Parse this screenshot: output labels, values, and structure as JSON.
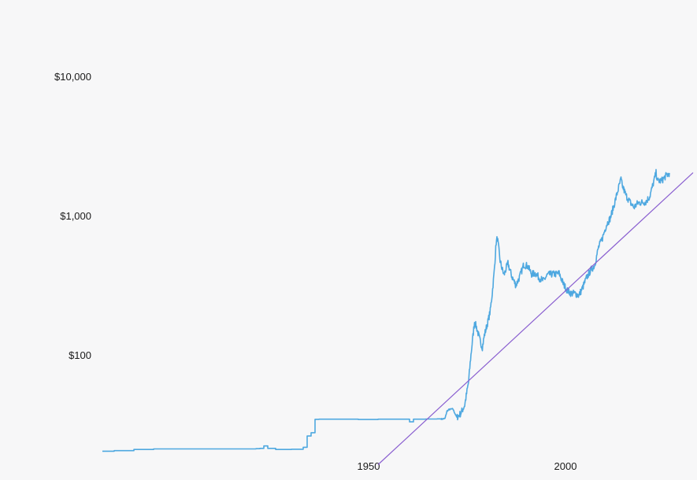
{
  "chart_data": {
    "type": "line",
    "title": "",
    "xlabel": "",
    "ylabel": "",
    "y_scale": "log",
    "xlim": [
      1880,
      2030
    ],
    "ylim": [
      15,
      18000
    ],
    "grid": false,
    "legend": "none",
    "x_ticks": [
      {
        "value": 1950,
        "label": "1950"
      },
      {
        "value": 2000,
        "label": "2000"
      }
    ],
    "y_ticks": [
      {
        "value": 100,
        "label": "$100"
      },
      {
        "value": 1000,
        "label": "$1,000"
      },
      {
        "value": 10000,
        "label": "$10,000"
      }
    ],
    "series": [
      {
        "color": "#4ea8e0",
        "style": "step-noisy",
        "points": [
          [
            1880,
            20.6
          ],
          [
            1883,
            20.8
          ],
          [
            1888,
            21.2
          ],
          [
            1893,
            21.4
          ],
          [
            1900,
            21.4
          ],
          [
            1905,
            21.4
          ],
          [
            1910,
            21.4
          ],
          [
            1915,
            21.4
          ],
          [
            1919,
            21.5
          ],
          [
            1920,
            21.6
          ],
          [
            1921,
            22.5
          ],
          [
            1922,
            21.6
          ],
          [
            1924,
            21.2
          ],
          [
            1928,
            21.3
          ],
          [
            1930,
            21.3
          ],
          [
            1931,
            22.0
          ],
          [
            1932,
            26.5
          ],
          [
            1933,
            28.0
          ],
          [
            1934,
            34.9
          ],
          [
            1935,
            35.0
          ],
          [
            1940,
            35.0
          ],
          [
            1945,
            34.8
          ],
          [
            1950,
            35.0
          ],
          [
            1952,
            35.0
          ],
          [
            1955,
            35.0
          ],
          [
            1957,
            35.0
          ],
          [
            1958,
            33.5
          ],
          [
            1959,
            35.0
          ],
          [
            1960,
            35.0
          ],
          [
            1962,
            35.1
          ],
          [
            1965,
            35.2
          ],
          [
            1968,
            35.3
          ],
          [
            1970,
            35.5
          ],
          [
            1972,
            35.6
          ],
          [
            1975,
            35.6
          ],
          [
            1977,
            35.6
          ],
          [
            1980,
            35.6
          ],
          [
            1983,
            36.0
          ],
          [
            1985,
            36.2
          ],
          [
            1988,
            36.5
          ],
          [
            1990,
            36.5
          ],
          [
            1992,
            36.2
          ],
          [
            1994,
            36.0
          ],
          [
            1996,
            36.1
          ],
          [
            1998,
            36.3
          ],
          [
            2000,
            36.4
          ],
          [
            2003,
            36.6
          ],
          [
            2005,
            36.8
          ],
          [
            2008,
            37.0
          ],
          [
            2010,
            37.0
          ],
          [
            2013,
            37.2
          ],
          [
            2015,
            37.4
          ],
          [
            2018,
            37.5
          ],
          [
            2020,
            37.6
          ],
          [
            2022,
            37.6
          ]
        ]
      },
      {
        "color": "#4ea8e0",
        "style": "gold-price",
        "points": [
          [
            1966,
            35.0
          ],
          [
            1967,
            35.3
          ],
          [
            1967.5,
            40.0
          ],
          [
            1968,
            41.0
          ],
          [
            1969,
            41.5
          ],
          [
            1970,
            36.0
          ],
          [
            1971,
            38.5
          ],
          [
            1972,
            44.0
          ],
          [
            1973,
            65.0
          ],
          [
            1973.5,
            95.0
          ],
          [
            1974,
            130.0
          ],
          [
            1974.5,
            175.0
          ],
          [
            1975,
            160.0
          ],
          [
            1976,
            125.0
          ],
          [
            1976.5,
            115.0
          ],
          [
            1977,
            140.0
          ],
          [
            1978,
            180.0
          ],
          [
            1978.5,
            210.0
          ],
          [
            1979,
            280.0
          ],
          [
            1979.5,
            400.0
          ],
          [
            1980,
            650.0
          ],
          [
            1980.3,
            700.0
          ],
          [
            1980.7,
            570.0
          ],
          [
            1981,
            480.0
          ],
          [
            1981.5,
            420.0
          ],
          [
            1982,
            380.0
          ],
          [
            1982.5,
            420.0
          ],
          [
            1983,
            460.0
          ],
          [
            1983.5,
            410.0
          ],
          [
            1984,
            370.0
          ],
          [
            1985,
            320.0
          ],
          [
            1986,
            370.0
          ],
          [
            1987,
            450.0
          ],
          [
            1988,
            440.0
          ],
          [
            1989,
            385.0
          ],
          [
            1990,
            390.0
          ],
          [
            1991,
            360.0
          ],
          [
            1992,
            345.0
          ],
          [
            1993,
            380.0
          ],
          [
            1994,
            385.0
          ],
          [
            1995,
            385.0
          ],
          [
            1996,
            390.0
          ],
          [
            1997,
            330.0
          ],
          [
            1998,
            295.0
          ],
          [
            1999,
            280.0
          ],
          [
            2000,
            280.0
          ],
          [
            2001,
            270.0
          ],
          [
            2002,
            310.0
          ],
          [
            2003,
            365.0
          ],
          [
            2004,
            410.0
          ],
          [
            2005,
            445.0
          ],
          [
            2006,
            600.0
          ],
          [
            2007,
            700.0
          ],
          [
            2008,
            870.0
          ],
          [
            2009,
            975.0
          ],
          [
            2010,
            1225.0
          ],
          [
            2011,
            1570.0
          ],
          [
            2011.7,
            1850.0
          ],
          [
            2012,
            1670.0
          ],
          [
            2013,
            1410.0
          ],
          [
            2014,
            1265.0
          ],
          [
            2015,
            1160.0
          ],
          [
            2016,
            1250.0
          ],
          [
            2017,
            1260.0
          ],
          [
            2018,
            1270.0
          ],
          [
            2019,
            1390.0
          ],
          [
            2020,
            1770.0
          ],
          [
            2020.6,
            2050.0
          ],
          [
            2021,
            1800.0
          ],
          [
            2022,
            1800.0
          ],
          [
            2023,
            1940.0
          ],
          [
            2024,
            2050.0
          ]
        ]
      },
      {
        "color": "#8a5fd0",
        "style": "trend",
        "points": [
          [
            1950,
            16.5
          ],
          [
            2030,
            2060.0
          ]
        ]
      }
    ]
  }
}
